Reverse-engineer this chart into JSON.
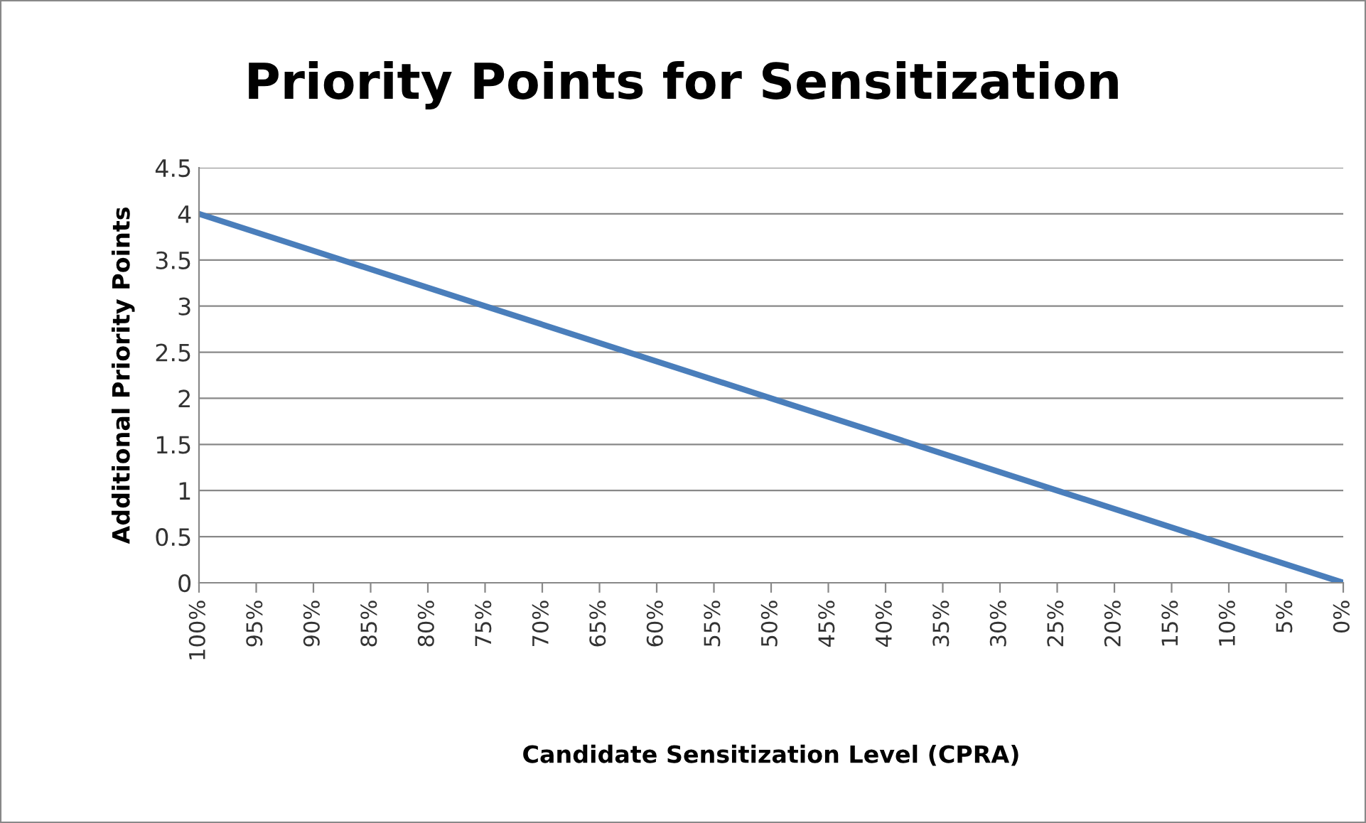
{
  "chart_data": {
    "type": "line",
    "title": "Priority Points for Sensitization",
    "xlabel": "Candidate Sensitization Level (CPRA)",
    "ylabel": "Additional Priority Points",
    "x": [
      100,
      75,
      50,
      25,
      0
    ],
    "series": [
      {
        "color": "#4a7ebb",
        "values": [
          4,
          3,
          2,
          1,
          0
        ]
      }
    ],
    "xlim": [
      100,
      0
    ],
    "xticks": [
      {
        "value": 100,
        "label": "100%"
      },
      {
        "value": 95,
        "label": "95%"
      },
      {
        "value": 90,
        "label": "90%"
      },
      {
        "value": 85,
        "label": "85%"
      },
      {
        "value": 80,
        "label": "80%"
      },
      {
        "value": 75,
        "label": "75%"
      },
      {
        "value": 70,
        "label": "70%"
      },
      {
        "value": 65,
        "label": "65%"
      },
      {
        "value": 60,
        "label": "60%"
      },
      {
        "value": 55,
        "label": "55%"
      },
      {
        "value": 50,
        "label": "50%"
      },
      {
        "value": 45,
        "label": "45%"
      },
      {
        "value": 40,
        "label": "40%"
      },
      {
        "value": 35,
        "label": "35%"
      },
      {
        "value": 30,
        "label": "30%"
      },
      {
        "value": 25,
        "label": "25%"
      },
      {
        "value": 20,
        "label": "20%"
      },
      {
        "value": 15,
        "label": "15%"
      },
      {
        "value": 10,
        "label": "10%"
      },
      {
        "value": 5,
        "label": "5%"
      },
      {
        "value": 0,
        "label": "0%"
      }
    ],
    "ylim": [
      0,
      4.5
    ],
    "yticks": [
      0,
      0.5,
      1,
      1.5,
      2,
      2.5,
      3,
      3.5,
      4,
      4.5
    ],
    "grid": "y",
    "marker": "none",
    "line_style": "solid"
  }
}
